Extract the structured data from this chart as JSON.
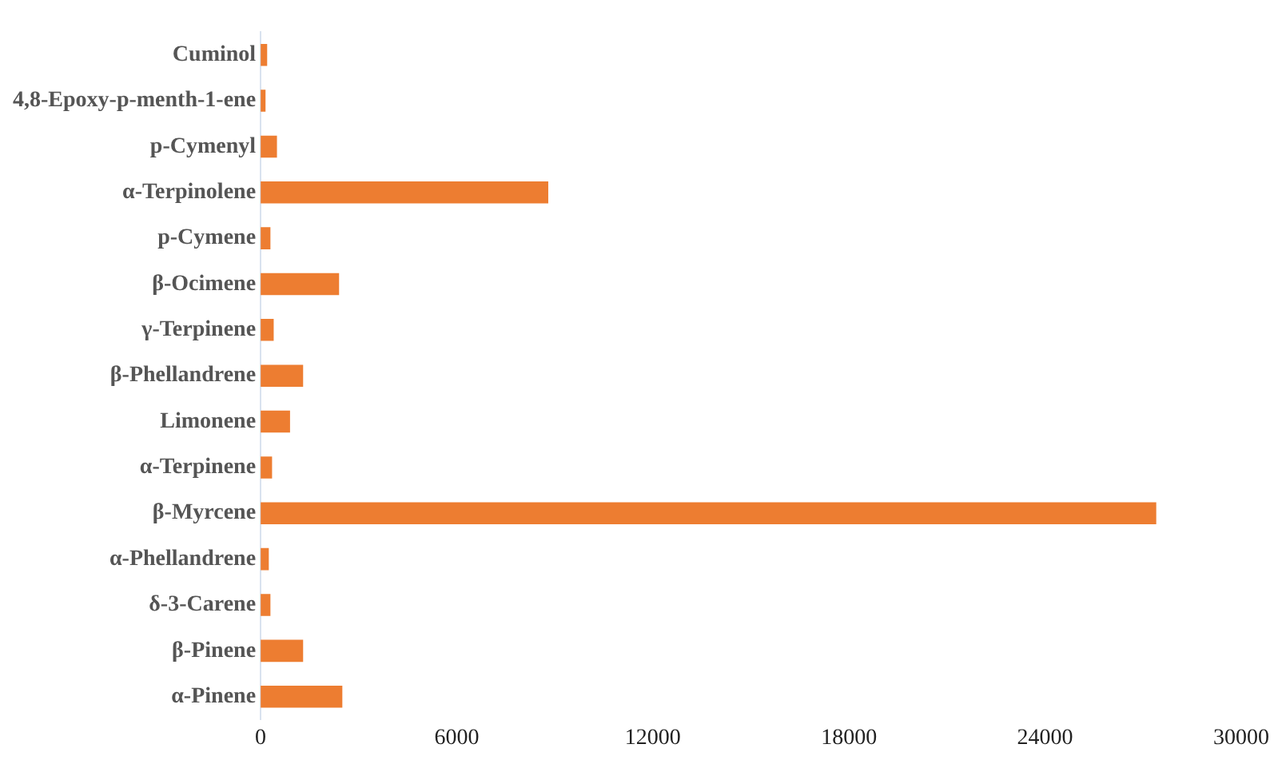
{
  "chart_data": {
    "type": "bar",
    "orientation": "horizontal",
    "categories": [
      "Cuminol",
      "4,8-Epoxy-p-menth-1-ene",
      "p-Cymenyl",
      "α-Terpinolene",
      "p-Cymene",
      "β-Ocimene",
      "γ-Terpinene",
      "β-Phellandrene",
      "Limonene",
      "α-Terpinene",
      "β-Myrcene",
      "α-Phellandrene",
      "δ-3-Carene",
      "β-Pinene",
      "α-Pinene"
    ],
    "values": [
      200,
      150,
      500,
      8800,
      300,
      2400,
      400,
      1300,
      900,
      350,
      27400,
      250,
      300,
      1300,
      2500
    ],
    "color": "#ed7d31",
    "xlim": [
      0,
      30000
    ],
    "xticks": [
      0,
      6000,
      12000,
      18000,
      24000,
      30000
    ],
    "grid": false,
    "legend": false
  }
}
